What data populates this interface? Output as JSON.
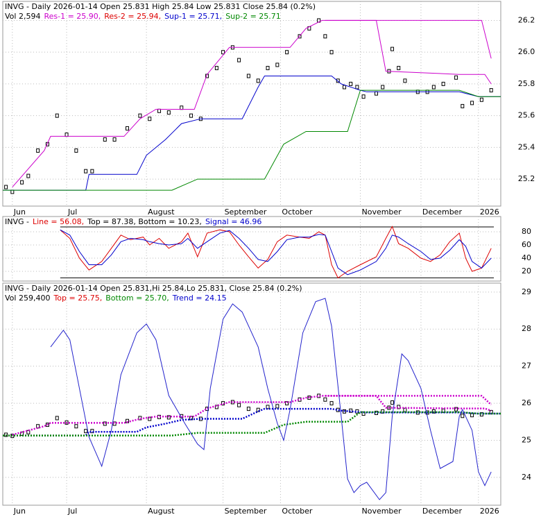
{
  "chart_data": [
    {
      "type": "candlestick",
      "title": "INVG - Daily 2026-01-14 Open 25.831   High 25.84   Low 25.831   Close 25.84 (0.2%)",
      "legend": [
        {
          "text": "Vol 2,594",
          "color": "#000000"
        },
        {
          "text": "Res-1 = 25.90,",
          "color": "#cc00cc"
        },
        {
          "text": "Res-2 = 25.94,",
          "color": "#dd0000"
        },
        {
          "text": "Sup-1 = 25.71,",
          "color": "#0000cc"
        },
        {
          "text": "Sup-2 = 25.71",
          "color": "#008800"
        }
      ],
      "xlim": [
        0,
        156
      ],
      "xticks": [
        {
          "value": 3,
          "label": "Jun"
        },
        {
          "value": 20,
          "label": "Jul"
        },
        {
          "value": 45,
          "label": "August"
        },
        {
          "value": 69,
          "label": "September"
        },
        {
          "value": 87,
          "label": "October"
        },
        {
          "value": 112,
          "label": "November"
        },
        {
          "value": 131,
          "label": "December"
        },
        {
          "value": 149,
          "label": "2026"
        }
      ],
      "ylim": [
        25.03,
        26.32
      ],
      "yticks": [
        25.2,
        25.4,
        25.6,
        25.8,
        {
          "value": 26,
          "label": "26.0"
        },
        26.2
      ],
      "grid": true,
      "series": [
        {
          "style": "marks",
          "color": "#000000",
          "x": [
            1,
            3,
            6,
            8,
            11,
            14,
            17,
            20,
            23,
            26,
            28,
            32,
            35,
            39,
            43,
            46,
            49,
            52,
            56,
            59,
            62,
            64,
            67,
            69,
            72,
            74,
            77,
            80,
            83,
            86,
            89,
            93,
            96,
            99,
            101,
            103,
            105,
            107,
            109,
            111,
            113,
            117,
            119,
            121,
            122,
            124,
            126,
            130,
            133,
            135,
            138,
            142,
            144,
            147,
            150,
            153
          ],
          "values": [
            25.15,
            25.12,
            25.18,
            25.22,
            25.38,
            25.42,
            25.6,
            25.48,
            25.38,
            25.25,
            25.25,
            25.45,
            25.45,
            25.52,
            25.6,
            25.58,
            25.63,
            25.62,
            25.65,
            25.6,
            25.58,
            25.85,
            25.9,
            26.0,
            26.03,
            25.95,
            25.85,
            25.82,
            25.9,
            25.92,
            26.0,
            26.1,
            26.15,
            26.2,
            26.1,
            26.0,
            25.82,
            25.78,
            25.8,
            25.78,
            25.72,
            25.74,
            25.78,
            25.88,
            26.02,
            25.9,
            25.82,
            25.75,
            25.75,
            25.78,
            25.8,
            25.84,
            25.66,
            25.68,
            25.7,
            25.76
          ]
        },
        {
          "style": "line",
          "color": "#cc00cc",
          "x": [
            3,
            13,
            15,
            38,
            43,
            48,
            60,
            64,
            71,
            90,
            95,
            100,
            117,
            120,
            143,
            151,
            153
          ],
          "values": [
            25.15,
            25.38,
            25.47,
            25.47,
            25.58,
            25.64,
            25.64,
            25.86,
            26.03,
            26.03,
            26.15,
            26.2,
            26.2,
            25.88,
            25.86,
            25.86,
            25.8
          ]
        },
        {
          "style": "line",
          "color": "#cc00cc",
          "x": [
            101,
            150,
            153
          ],
          "values": [
            26.2,
            26.2,
            25.96
          ]
        },
        {
          "style": "line",
          "color": "#0000cc",
          "x": [
            0,
            26,
            27,
            42,
            45,
            51,
            56,
            62,
            75,
            80,
            82,
            103,
            106,
            112,
            114,
            143,
            149,
            156
          ],
          "values": [
            25.13,
            25.13,
            25.23,
            25.23,
            25.35,
            25.45,
            25.55,
            25.58,
            25.58,
            25.78,
            25.85,
            25.85,
            25.8,
            25.76,
            25.75,
            25.75,
            25.72,
            25.72
          ]
        },
        {
          "style": "line",
          "color": "#008800",
          "x": [
            0,
            53,
            61,
            82,
            88,
            95,
            108,
            112,
            143,
            149,
            156
          ],
          "values": [
            25.13,
            25.13,
            25.2,
            25.2,
            25.42,
            25.5,
            25.5,
            25.76,
            25.76,
            25.72,
            25.72
          ]
        }
      ]
    },
    {
      "type": "line",
      "legend": [
        {
          "text": "INVG -",
          "color": "#000000"
        },
        {
          "text": "Line = 56.08,",
          "color": "#dd0000"
        },
        {
          "text": "Top = 87.38, Bottom = 10.23,",
          "color": "#000000"
        },
        {
          "text": "Signal = 46.96",
          "color": "#0000cc"
        }
      ],
      "xlim": [
        0,
        156
      ],
      "ylim": [
        5.3,
        103.2
      ],
      "yticks": [
        20,
        40,
        60,
        80
      ],
      "hlines": [
        87.38,
        10.23
      ],
      "grid": true,
      "series": [
        {
          "style": "line",
          "color": "#dd0000",
          "x": [
            18,
            21,
            24,
            27,
            31,
            34,
            37,
            40,
            44,
            46,
            49,
            52,
            56,
            58,
            61,
            64,
            68,
            71,
            74,
            77,
            80,
            83,
            86,
            89,
            93,
            96,
            99,
            101,
            103,
            105,
            108,
            112,
            117,
            120,
            122,
            124,
            127,
            131,
            134,
            137,
            140,
            143,
            145,
            147,
            150,
            153
          ],
          "values": [
            83,
            70,
            40,
            22,
            35,
            55,
            75,
            68,
            72,
            60,
            70,
            55,
            65,
            78,
            42,
            78,
            83,
            80,
            60,
            42,
            25,
            38,
            65,
            75,
            72,
            70,
            80,
            75,
            30,
            10,
            20,
            30,
            42,
            70,
            88,
            62,
            55,
            40,
            35,
            45,
            65,
            78,
            40,
            20,
            25,
            55
          ]
        },
        {
          "style": "line",
          "color": "#0000cc",
          "x": [
            18,
            21,
            24,
            27,
            31,
            34,
            37,
            40,
            44,
            46,
            49,
            52,
            56,
            58,
            61,
            64,
            68,
            71,
            74,
            77,
            80,
            83,
            86,
            89,
            93,
            96,
            99,
            101,
            103,
            105,
            108,
            112,
            117,
            120,
            122,
            124,
            127,
            131,
            134,
            137,
            140,
            143,
            145,
            147,
            150,
            153
          ],
          "values": [
            83,
            75,
            50,
            30,
            30,
            45,
            65,
            70,
            68,
            65,
            62,
            60,
            62,
            70,
            55,
            65,
            78,
            82,
            70,
            55,
            38,
            35,
            50,
            68,
            72,
            72,
            76,
            75,
            50,
            25,
            15,
            22,
            35,
            55,
            75,
            72,
            62,
            50,
            38,
            40,
            52,
            68,
            58,
            35,
            25,
            40
          ]
        }
      ]
    },
    {
      "type": "line",
      "title": "INVG - Daily 2026-01-14 Open 25.831,Hi 25.84,Lo 25.831, Close 25.84 (0.2%)",
      "legend": [
        {
          "text": "Vol 259,400",
          "color": "#000000"
        },
        {
          "text": "Top = 25.75,",
          "color": "#dd0000"
        },
        {
          "text": "Bottom = 25.70,",
          "color": "#008800"
        },
        {
          "text": "Trend = 24.15",
          "color": "#0000cc"
        }
      ],
      "xlim": [
        0,
        156
      ],
      "xticks": [
        {
          "value": 3,
          "label": "Jun"
        },
        {
          "value": 20,
          "label": "Jul"
        },
        {
          "value": 45,
          "label": "August"
        },
        {
          "value": 69,
          "label": "September"
        },
        {
          "value": 87,
          "label": "October"
        },
        {
          "value": 112,
          "label": "November"
        },
        {
          "value": 131,
          "label": "December"
        },
        {
          "value": 149,
          "label": "2026"
        }
      ],
      "ylim": [
        23.25,
        29.24
      ],
      "yticks": [
        24,
        25,
        26,
        27,
        28,
        29
      ],
      "grid": true,
      "series": [
        {
          "style": "line",
          "color": "#2222cc",
          "x": [
            15,
            19,
            21,
            24,
            27,
            31,
            34,
            37,
            42,
            45,
            48,
            52,
            57,
            61,
            63,
            65,
            69,
            72,
            75,
            80,
            83,
            86,
            88,
            90,
            94,
            98,
            101,
            103,
            106,
            108,
            110,
            112,
            114,
            118,
            120,
            122,
            125,
            127,
            131,
            134,
            137,
            141,
            143,
            144,
            147,
            149,
            151,
            153
          ],
          "values": [
            27.52,
            27.97,
            27.71,
            26.4,
            25.09,
            24.3,
            25.27,
            26.77,
            27.9,
            28.14,
            27.71,
            26.21,
            25.46,
            24.9,
            24.75,
            26.4,
            28.27,
            28.68,
            28.46,
            27.52,
            26.4,
            25.46,
            25.0,
            25.83,
            27.9,
            28.74,
            28.83,
            28.08,
            25.65,
            23.96,
            23.59,
            23.78,
            23.87,
            23.4,
            23.59,
            25.65,
            27.33,
            27.15,
            26.4,
            25.27,
            24.24,
            24.43,
            25.65,
            25.83,
            25.27,
            24.15,
            23.78,
            24.15
          ]
        }
      ]
    }
  ]
}
